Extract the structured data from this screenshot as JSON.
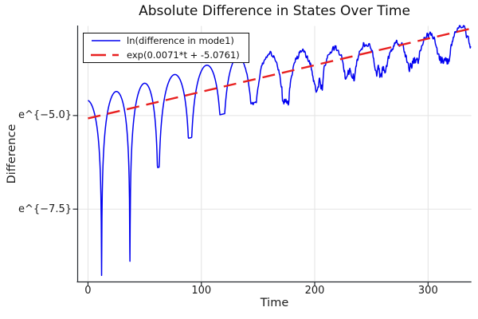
{
  "chart_data": {
    "type": "line",
    "title": "Absolute Difference in States Over Time",
    "xlabel": "Time",
    "ylabel": "Difference",
    "grid": true,
    "legend_position": "top-left",
    "x_range": [
      -9.1,
      338.2
    ],
    "y_range_ln": [
      -9.444,
      -2.607
    ],
    "x_ticks": [
      {
        "t": 0,
        "label": "0"
      },
      {
        "t": 100,
        "label": "100"
      },
      {
        "t": 200,
        "label": "200"
      },
      {
        "t": 300,
        "label": "300"
      }
    ],
    "y_ticks": [
      {
        "ln": -5.0,
        "label": "e^{−5.0}"
      },
      {
        "ln": -7.5,
        "label": "e^{−7.5}"
      }
    ],
    "series": [
      {
        "name": "ln(difference in mode1)",
        "color": "#0101f0",
        "style": "solid",
        "line_width": 1.5,
        "model": {
          "description": "log of absolute difference: exponential envelope with periodic deep cusps at sign changes, high-frequency noise after t~125",
          "t_start": 0,
          "t_end": 338,
          "t_step": 0.3,
          "envelope_slope": 0.0071,
          "envelope_intercept": -5.0761,
          "cusp_times": [
            -15.5,
            12,
            37,
            62,
            90,
            118.5,
            146,
            174.5,
            203,
            231,
            259,
            286.5,
            314.5,
            342
          ],
          "cusp_depths": [
            4.0,
            4.28,
            4.08,
            1.75,
            1.16,
            0.73,
            0.64,
            0.67,
            0.55,
            0.54,
            0.52,
            0.57,
            0.6,
            0.55
          ],
          "peak_offset_points": [
            [
              0,
              0.5
            ],
            [
              130,
              0.72
            ],
            [
              270,
              0.1
            ],
            [
              338,
              0.1
            ]
          ],
          "noise": {
            "start_t": 125,
            "ramp": 40,
            "amplitude": 0.11,
            "cusp_boost_after_t": 155,
            "cusp_boost_radius": 8,
            "cusp_boost_factor": 0.22
          }
        }
      },
      {
        "name": "exp(0.0071*t + -5.0761)",
        "color": "#e82020",
        "style": "dashed",
        "line_width": 2.4,
        "slope": 0.0071,
        "intercept": -5.0761,
        "t_start": 0,
        "t_end": 338
      }
    ]
  }
}
